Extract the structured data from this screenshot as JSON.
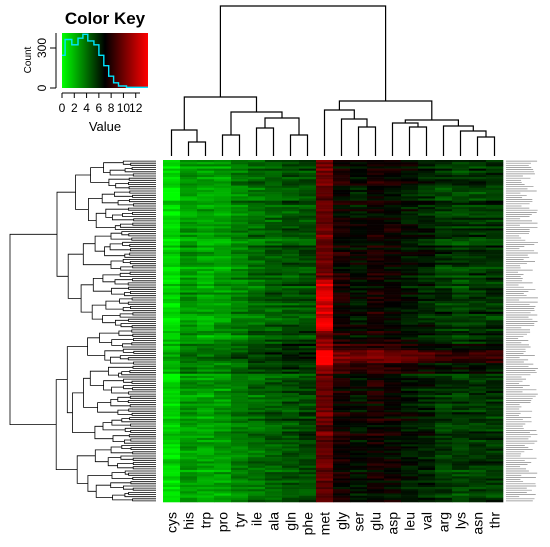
{
  "chart_data": {
    "type": "heatmap",
    "title": "Color Key",
    "key": {
      "title": "Color Key",
      "xlabel": "Value",
      "ylabel": "Count",
      "x_ticks": [
        "0",
        "2",
        "4",
        "6",
        "8",
        "10",
        "12"
      ],
      "y_ticks": [
        "0",
        "300"
      ],
      "range": [
        0,
        14
      ],
      "count_max": 420,
      "histogram": [
        {
          "x": 0.0,
          "count": 250
        },
        {
          "x": 0.5,
          "count": 250
        },
        {
          "x": 0.5,
          "count": 370
        },
        {
          "x": 1.6,
          "count": 370
        },
        {
          "x": 1.6,
          "count": 330
        },
        {
          "x": 2.6,
          "count": 330
        },
        {
          "x": 2.6,
          "count": 380
        },
        {
          "x": 3.4,
          "count": 380
        },
        {
          "x": 3.4,
          "count": 410
        },
        {
          "x": 4.2,
          "count": 410
        },
        {
          "x": 4.2,
          "count": 360
        },
        {
          "x": 5.2,
          "count": 360
        },
        {
          "x": 5.2,
          "count": 330
        },
        {
          "x": 6.0,
          "count": 330
        },
        {
          "x": 6.0,
          "count": 250
        },
        {
          "x": 6.8,
          "count": 250
        },
        {
          "x": 6.8,
          "count": 170
        },
        {
          "x": 7.6,
          "count": 170
        },
        {
          "x": 7.6,
          "count": 90
        },
        {
          "x": 8.4,
          "count": 90
        },
        {
          "x": 8.4,
          "count": 40
        },
        {
          "x": 9.2,
          "count": 40
        },
        {
          "x": 9.2,
          "count": 15
        },
        {
          "x": 10.5,
          "count": 15
        },
        {
          "x": 10.5,
          "count": 5
        },
        {
          "x": 14.0,
          "count": 5
        }
      ]
    },
    "colors": {
      "low": "#00ff00",
      "mid": "#000000",
      "high": "#ff0000",
      "histogram_line": "#00e5ff"
    },
    "columns": [
      "cys",
      "his",
      "trp",
      "pro",
      "tyr",
      "ile",
      "ala",
      "gln",
      "phe",
      "met",
      "gly",
      "ser",
      "glu",
      "asp",
      "leu",
      "val",
      "arg",
      "lys",
      "asn",
      "thr"
    ],
    "column_base_values": [
      1.0,
      2.8,
      2.5,
      2.7,
      3.5,
      4.0,
      4.4,
      4.8,
      5.0,
      10.0,
      7.5,
      6.8,
      7.5,
      7.2,
      6.6,
      6.2,
      5.6,
      5.3,
      5.5,
      5.6
    ],
    "row_count": 160,
    "row_tree_leaf_order": "as drawn"
  }
}
